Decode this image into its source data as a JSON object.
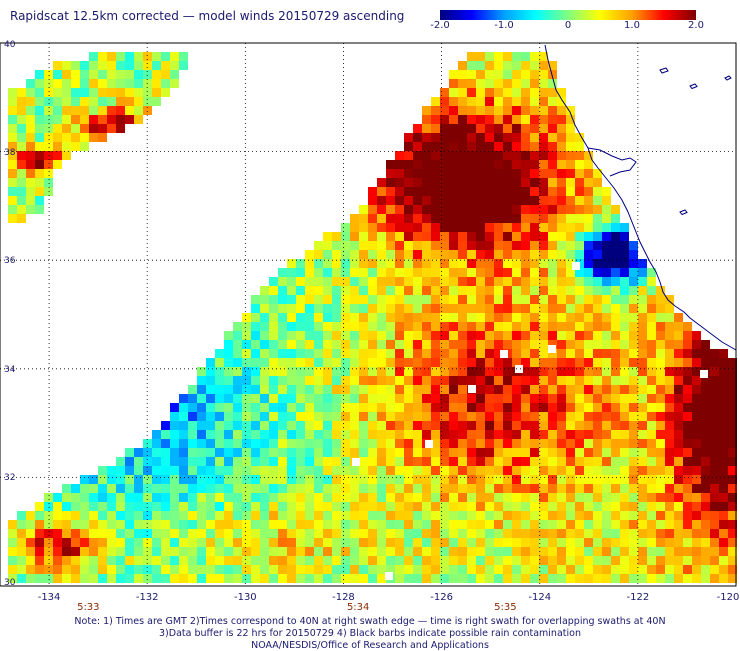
{
  "title": "Rapidscat 12.5km corrected — model winds 20150729 ascending",
  "colorbar": {
    "labels": [
      "-2.0",
      "-1.0",
      "0",
      "1.0",
      "2.0"
    ],
    "values": [
      -2.0,
      -1.0,
      0.0,
      1.0,
      2.0
    ],
    "range": [
      -2.0,
      2.0
    ],
    "stops": [
      "#00007f",
      "#0000ff",
      "#00a0ff",
      "#00ffff",
      "#7fff7f",
      "#ffff00",
      "#ffa000",
      "#ff0000",
      "#7f0000"
    ]
  },
  "map": {
    "lat_range": [
      30,
      40
    ],
    "lon_range": [
      -135,
      -120
    ],
    "lat_labels": [
      "40",
      "38",
      "36",
      "34",
      "32",
      "30"
    ],
    "lat_values": [
      40,
      38,
      36,
      34,
      32,
      30
    ],
    "lon_labels": [
      "-134",
      "-132",
      "-130",
      "-128",
      "-126",
      "-124",
      "-122",
      "-120"
    ],
    "lon_values": [
      -134,
      -132,
      -130,
      -128,
      -126,
      -124,
      -122,
      -120
    ],
    "grid": true,
    "coastline_color": "#000080"
  },
  "times": [
    {
      "label": "5:33",
      "lon": -133.2
    },
    {
      "label": "5:34",
      "lon": -127.7
    },
    {
      "label": "5:35",
      "lon": -124.7
    }
  ],
  "notes": [
    "Note: 1) Times are GMT 2)Times correspond to 40N at right swath edge — time is right swath for overlapping swaths at 40N",
    "3)Data buffer is 22 hrs for 20150729 4) Black barbs indicate possible rain contamination",
    "NOAA/NESDIS/Office of Research and Applications"
  ]
}
